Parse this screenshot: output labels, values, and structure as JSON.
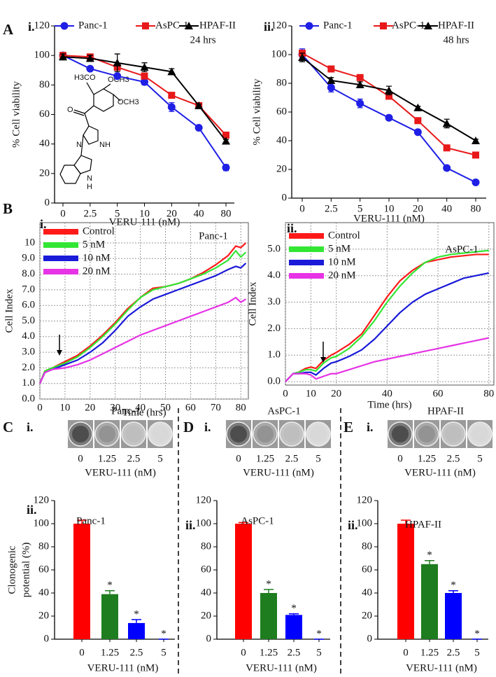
{
  "chart_data": [
    {
      "type": "line",
      "panel": "A",
      "subpanel": "i.",
      "annotation": "24 hrs",
      "xlabel": "VERU-111 (nM)",
      "ylabel": "% Cell  viability",
      "categories": [
        "0",
        "2.5",
        "5",
        "10",
        "20",
        "40",
        "80"
      ],
      "ylim": [
        0,
        120
      ],
      "yticks": [
        0,
        20,
        40,
        60,
        80,
        100,
        120
      ],
      "grid": false,
      "legend": "top",
      "structure": [
        "H3CO",
        "OCH3",
        "OCH3",
        "O",
        "N",
        "NH",
        "N",
        "H"
      ],
      "series": [
        {
          "name": "Panc-1",
          "color": "#1f1fe6",
          "marker": "circle",
          "values": [
            100,
            91,
            86,
            82,
            65,
            51,
            24
          ],
          "errors": [
            2,
            1,
            1,
            2,
            3,
            1,
            2
          ]
        },
        {
          "name": "AsPC-1",
          "color": "#e8191a",
          "marker": "square",
          "values": [
            100,
            99,
            92,
            86,
            73,
            66,
            46
          ],
          "errors": [
            1,
            1,
            2,
            2,
            1,
            1,
            1
          ]
        },
        {
          "name": "HPAF-II",
          "color": "#000000",
          "marker": "triangle",
          "values": [
            99,
            98,
            95,
            92,
            89,
            66,
            42
          ],
          "errors": [
            2,
            2,
            6,
            3,
            2,
            1,
            1
          ]
        }
      ]
    },
    {
      "type": "line",
      "subpanel": "ii.",
      "annotation": "48 hrs",
      "xlabel": "VERU-111 (nM)",
      "ylabel": "% Cell  viability",
      "categories": [
        "0",
        "2.5",
        "5",
        "10",
        "20",
        "40",
        "80"
      ],
      "ylim": [
        0,
        120
      ],
      "yticks": [
        0,
        20,
        40,
        60,
        80,
        100,
        120
      ],
      "grid": false,
      "legend": "top",
      "series": [
        {
          "name": "Panc-1",
          "color": "#1f1fe6",
          "marker": "circle",
          "values": [
            100,
            77,
            66,
            56,
            46,
            21,
            11
          ],
          "errors": [
            4,
            3,
            3,
            1,
            1,
            1,
            1
          ]
        },
        {
          "name": "AsPC-1",
          "color": "#e8191a",
          "marker": "square",
          "values": [
            101,
            90,
            84,
            71,
            54,
            35,
            30
          ],
          "errors": [
            1,
            1,
            1,
            2,
            1,
            1,
            1
          ]
        },
        {
          "name": "HPAF-II",
          "color": "#000000",
          "marker": "triangle",
          "values": [
            98,
            82,
            79,
            75,
            63,
            52,
            40
          ],
          "errors": [
            3,
            2,
            2,
            3,
            1,
            3,
            1
          ]
        }
      ]
    },
    {
      "type": "line",
      "panel": "B",
      "subpanel": "i.",
      "annotation": "Panc-1",
      "xlabel": "Time (hrs)",
      "ylabel": "Cell Index",
      "x": [
        0,
        2,
        5,
        10,
        15,
        20,
        25,
        30,
        35,
        40,
        45,
        50,
        55,
        60,
        65,
        70,
        75,
        78,
        80,
        82
      ],
      "xlim": [
        0,
        83
      ],
      "xticks": [
        0,
        10,
        20,
        30,
        40,
        50,
        60,
        70,
        80
      ],
      "ylim": [
        0,
        11.3
      ],
      "yticks": [
        {
          "value": 0,
          "label": "0.0"
        },
        {
          "value": 1,
          "label": "1.0"
        },
        {
          "value": 2,
          "label": "2.0"
        },
        {
          "value": 3,
          "label": "3.0"
        },
        {
          "value": 4,
          "label": "4.0"
        },
        {
          "value": 5,
          "label": "5.0"
        },
        {
          "value": 6,
          "label": "6.0"
        },
        {
          "value": 7,
          "label": "7.0"
        },
        {
          "value": 8,
          "label": "8.0"
        },
        {
          "value": 9,
          "label": "9.0"
        },
        10
      ],
      "grid": true,
      "legend": "upper left",
      "series": [
        {
          "name": "Control",
          "color": "#ff1a1a",
          "values": [
            1.0,
            1.8,
            2.0,
            2.4,
            2.8,
            3.4,
            4.1,
            4.9,
            5.8,
            6.5,
            7.1,
            7.2,
            7.4,
            7.7,
            8.1,
            8.6,
            9.2,
            9.8,
            9.7,
            10.0
          ]
        },
        {
          "name": "5 nM",
          "color": "#33e633",
          "values": [
            1.0,
            1.8,
            2.0,
            2.3,
            2.7,
            3.3,
            4.0,
            4.8,
            5.7,
            6.5,
            7.0,
            7.2,
            7.4,
            7.7,
            8.0,
            8.4,
            8.9,
            9.5,
            9.1,
            9.4
          ]
        },
        {
          "name": "10 nM",
          "color": "#1a1ad9",
          "values": [
            1.0,
            1.7,
            1.9,
            2.2,
            2.5,
            3.0,
            3.6,
            4.4,
            5.3,
            5.9,
            6.4,
            6.7,
            7.0,
            7.3,
            7.6,
            7.9,
            8.3,
            8.5,
            8.4,
            8.7
          ]
        },
        {
          "name": "20 nM",
          "color": "#e633e6",
          "values": [
            1.0,
            1.7,
            1.9,
            2.0,
            2.2,
            2.5,
            2.9,
            3.3,
            3.7,
            4.1,
            4.4,
            4.7,
            5.0,
            5.3,
            5.6,
            5.9,
            6.2,
            6.5,
            6.2,
            6.4
          ]
        }
      ]
    },
    {
      "type": "line",
      "subpanel": "ii.",
      "annotation": "AsPC-1",
      "xlabel": "Time (hrs)",
      "ylabel": "Cell Index",
      "x": [
        0,
        3,
        5,
        8,
        10,
        12,
        15,
        18,
        20,
        25,
        30,
        35,
        40,
        45,
        50,
        55,
        60,
        65,
        70,
        75,
        80
      ],
      "xlim": [
        0,
        82
      ],
      "xticks": [
        0,
        10,
        20,
        40,
        60,
        80
      ],
      "ylim": [
        -0.13,
        6.0
      ],
      "yticks": [
        {
          "value": 0,
          "label": "0.0"
        },
        {
          "value": 1,
          "label": "1.0"
        },
        {
          "value": 2,
          "label": "2.0"
        },
        {
          "value": 3,
          "label": "3.0"
        },
        {
          "value": 4,
          "label": "4.0"
        },
        {
          "value": 5,
          "label": "5.0"
        }
      ],
      "grid": true,
      "legend": "upper left",
      "series": [
        {
          "name": "Control",
          "color": "#ff1a1a",
          "values": [
            0,
            0.3,
            0.35,
            0.5,
            0.55,
            0.5,
            0.8,
            1.0,
            1.1,
            1.4,
            1.8,
            2.5,
            3.2,
            3.8,
            4.2,
            4.5,
            4.6,
            4.7,
            4.75,
            4.8,
            4.8
          ]
        },
        {
          "name": "5 nM",
          "color": "#33e633",
          "values": [
            0,
            0.3,
            0.35,
            0.45,
            0.45,
            0.4,
            0.7,
            0.9,
            0.95,
            1.25,
            1.7,
            2.3,
            3.0,
            3.6,
            4.1,
            4.5,
            4.7,
            4.8,
            4.85,
            4.9,
            4.95
          ]
        },
        {
          "name": "10 nM",
          "color": "#1a1ad9",
          "values": [
            0,
            0.3,
            0.3,
            0.35,
            0.35,
            0.25,
            0.5,
            0.7,
            0.75,
            0.95,
            1.2,
            1.6,
            2.1,
            2.6,
            3.0,
            3.3,
            3.5,
            3.7,
            3.9,
            4.0,
            4.1
          ]
        },
        {
          "name": "20 nM",
          "color": "#e633e6",
          "values": [
            0,
            0.3,
            0.3,
            0.3,
            0.25,
            0.1,
            0.2,
            0.3,
            0.3,
            0.45,
            0.6,
            0.75,
            0.85,
            0.95,
            1.05,
            1.15,
            1.25,
            1.35,
            1.45,
            1.55,
            1.65
          ]
        }
      ]
    },
    {
      "type": "bar",
      "subpanel": "ii.",
      "title": "Panc-1",
      "xlabel": "VERU-111 (nM)",
      "ylabel": [
        "Clonogenic",
        "potential (%)"
      ],
      "categories": [
        "0",
        "1.25",
        "2.5",
        "5"
      ],
      "values": [
        100,
        39,
        14,
        0
      ],
      "errors": [
        3,
        3,
        3,
        0
      ],
      "colors": [
        "#ff0000",
        "#1e7d1e",
        "#0000ff",
        "#0000ff"
      ],
      "significance": [
        null,
        "*",
        "*",
        "*"
      ],
      "ylim": [
        0,
        120
      ],
      "yticks": [
        0,
        20,
        40,
        60,
        80,
        100,
        120
      ]
    },
    {
      "type": "bar",
      "subpanel": "ii.",
      "title": "AsPC-1",
      "xlabel": "VERU-111 (nM)",
      "categories": [
        "0",
        "1.25",
        "2.5",
        "5"
      ],
      "values": [
        100,
        40,
        21,
        0
      ],
      "errors": [
        1,
        3,
        1,
        0
      ],
      "colors": [
        "#ff0000",
        "#1e7d1e",
        "#0000ff",
        "#0000ff"
      ],
      "significance": [
        null,
        "*",
        "*",
        "*"
      ],
      "ylim": [
        0,
        120
      ],
      "yticks": [
        0,
        20,
        40,
        60,
        80,
        100,
        120
      ]
    },
    {
      "type": "bar",
      "subpanel": "ii.",
      "title": "HPAF-II",
      "xlabel": "VERU-111 (nM)",
      "categories": [
        "0",
        "1.25",
        "2.5",
        "5"
      ],
      "values": [
        100,
        65,
        40,
        0
      ],
      "errors": [
        3,
        3,
        2,
        0
      ],
      "colors": [
        "#ff0000",
        "#1e7d1e",
        "#0000ff",
        "#0000ff"
      ],
      "significance": [
        null,
        "*",
        "*",
        "*"
      ],
      "ylim": [
        0,
        120
      ],
      "yticks": [
        0,
        20,
        40,
        60,
        80,
        100,
        120
      ]
    }
  ],
  "colony_images": [
    {
      "panel": "C",
      "subpanel": "i.",
      "title": "Panc-1",
      "labels": [
        "0",
        "1.25",
        "2.5",
        "5"
      ],
      "xlabel": "VERU-111 (nM)"
    },
    {
      "panel": "D",
      "subpanel": "i.",
      "title": "AsPC-1",
      "labels": [
        "0",
        "1.25",
        "2.5",
        "5"
      ],
      "xlabel": "VERU-111 (nM)"
    },
    {
      "panel": "E",
      "subpanel": "i.",
      "title": "HPAF-II",
      "labels": [
        "0",
        "1.25",
        "2.5",
        "5"
      ],
      "xlabel": "VERU-111 (nM)"
    }
  ]
}
